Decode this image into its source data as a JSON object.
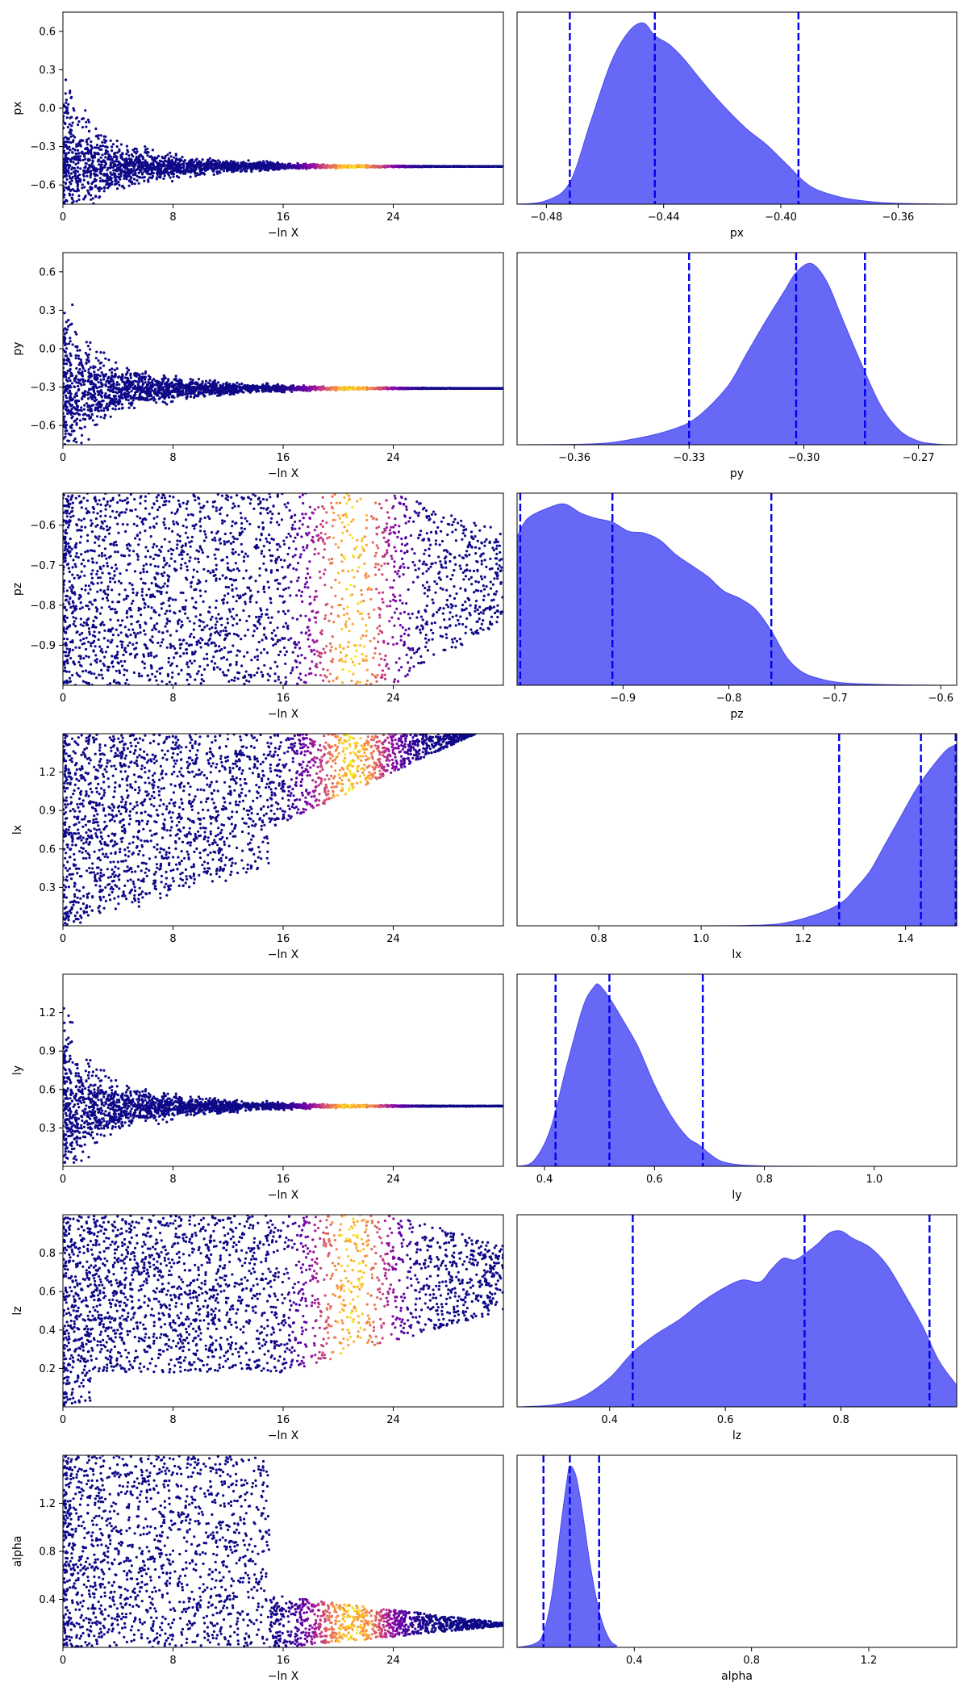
{
  "chart_data": [
    {
      "type": "scatter",
      "ylabel": "px",
      "xlabel": "−ln X",
      "xlim": [
        0,
        32
      ],
      "ylim": [
        -0.75,
        0.75
      ],
      "xticks": [
        0,
        8,
        16,
        24
      ],
      "yticks": [
        -0.6,
        -0.3,
        0.0,
        0.3,
        0.6
      ],
      "ytick_labels": [
        "−0.6",
        "−0.3",
        "0.0",
        "0.3",
        "0.6"
      ],
      "colormap": "plasma",
      "trace": {
        "converge": -0.455,
        "bulge_end": -0.18,
        "upper_start": 0.75,
        "lower_start": -0.75
      }
    },
    {
      "type": "area",
      "xlabel": "px",
      "xlim": [
        -0.49,
        -0.34
      ],
      "xticks": [
        -0.48,
        -0.44,
        -0.4,
        -0.36
      ],
      "xtick_labels": [
        "−0.48",
        "−0.44",
        "−0.40",
        "−0.36"
      ],
      "fill_color": "#5b5bf5",
      "quantile_color": "#0000ee",
      "quantiles": [
        -0.472,
        -0.443,
        -0.394
      ],
      "density": {
        "x": [
          -0.49,
          -0.48,
          -0.472,
          -0.465,
          -0.458,
          -0.452,
          -0.447,
          -0.443,
          -0.438,
          -0.433,
          -0.427,
          -0.42,
          -0.412,
          -0.405,
          -0.398,
          -0.39,
          -0.38,
          -0.37,
          -0.36,
          -0.34
        ],
        "y": [
          0.0,
          0.02,
          0.12,
          0.45,
          0.78,
          0.95,
          1.0,
          0.93,
          0.88,
          0.8,
          0.68,
          0.55,
          0.42,
          0.33,
          0.22,
          0.1,
          0.04,
          0.015,
          0.005,
          0.0
        ]
      }
    },
    {
      "type": "scatter",
      "ylabel": "py",
      "xlabel": "−ln X",
      "xlim": [
        0,
        32
      ],
      "ylim": [
        -0.75,
        0.75
      ],
      "xticks": [
        0,
        8,
        16,
        24
      ],
      "yticks": [
        -0.6,
        -0.3,
        0.0,
        0.3,
        0.6
      ],
      "ytick_labels": [
        "−0.6",
        "−0.3",
        "0.0",
        "0.3",
        "0.6"
      ],
      "colormap": "plasma",
      "trace": {
        "converge": -0.31,
        "bulge_end": -0.05,
        "upper_start": 0.75,
        "lower_start": -0.75
      }
    },
    {
      "type": "area",
      "xlabel": "py",
      "xlim": [
        -0.375,
        -0.26
      ],
      "xticks": [
        -0.36,
        -0.33,
        -0.3,
        -0.27
      ],
      "xtick_labels": [
        "−0.36",
        "−0.33",
        "−0.30",
        "−0.27"
      ],
      "fill_color": "#5b5bf5",
      "quantile_color": "#0000ee",
      "quantiles": [
        -0.33,
        -0.302,
        -0.284
      ],
      "density": {
        "x": [
          -0.375,
          -0.355,
          -0.345,
          -0.335,
          -0.328,
          -0.32,
          -0.315,
          -0.31,
          -0.305,
          -0.302,
          -0.298,
          -0.294,
          -0.29,
          -0.285,
          -0.28,
          -0.275,
          -0.27,
          -0.265,
          -0.26
        ],
        "y": [
          0.0,
          0.005,
          0.03,
          0.08,
          0.15,
          0.32,
          0.5,
          0.68,
          0.85,
          0.95,
          1.0,
          0.9,
          0.7,
          0.45,
          0.22,
          0.08,
          0.02,
          0.003,
          0.0
        ]
      }
    },
    {
      "type": "scatter",
      "ylabel": "pz",
      "xlabel": "−ln X",
      "xlim": [
        0,
        32
      ],
      "ylim": [
        -1.0,
        -0.52
      ],
      "xticks": [
        0,
        8,
        16,
        24
      ],
      "yticks": [
        -0.9,
        -0.8,
        -0.7,
        -0.6
      ],
      "ytick_labels": [
        "−0.9",
        "−0.8",
        "−0.7",
        "−0.6"
      ],
      "colormap": "plasma",
      "trace": {
        "fill_all": true,
        "right_start": 12,
        "right_end": 28
      }
    },
    {
      "type": "area",
      "xlabel": "pz",
      "xlim": [
        -1.0,
        -0.585
      ],
      "xticks": [
        -0.9,
        -0.8,
        -0.7,
        -0.6
      ],
      "xtick_labels": [
        "−0.9",
        "−0.8",
        "−0.7",
        "−0.6"
      ],
      "fill_color": "#5b5bf5",
      "quantile_color": "#0000ee",
      "quantiles": [
        -0.997,
        -0.91,
        -0.76
      ],
      "density": {
        "x": [
          -1.0,
          -0.99,
          -0.97,
          -0.955,
          -0.94,
          -0.925,
          -0.91,
          -0.895,
          -0.88,
          -0.865,
          -0.85,
          -0.835,
          -0.82,
          -0.805,
          -0.79,
          -0.775,
          -0.76,
          -0.745,
          -0.73,
          -0.71,
          -0.69,
          -0.66,
          -0.63,
          -0.6,
          -0.585
        ],
        "y": [
          0.82,
          0.92,
          0.98,
          1.0,
          0.95,
          0.92,
          0.9,
          0.85,
          0.84,
          0.8,
          0.72,
          0.66,
          0.6,
          0.52,
          0.48,
          0.42,
          0.3,
          0.15,
          0.07,
          0.03,
          0.012,
          0.005,
          0.002,
          0.0,
          0.0
        ]
      }
    },
    {
      "type": "scatter",
      "ylabel": "lx",
      "xlabel": "−ln X",
      "xlim": [
        0,
        32
      ],
      "ylim": [
        0.0,
        1.5
      ],
      "xticks": [
        0,
        8,
        16,
        24
      ],
      "yticks": [
        0.3,
        0.6,
        0.9,
        1.2
      ],
      "ytick_labels": [
        "0.3",
        "0.6",
        "0.9",
        "1.2"
      ],
      "colormap": "plasma",
      "trace": {
        "converge": 1.48,
        "bulge_end": 0.75,
        "upper_start": 1.5,
        "lower_start": 0.0,
        "upper_bound": 1.5
      }
    },
    {
      "type": "area",
      "xlabel": "lx",
      "xlim": [
        0.64,
        1.5
      ],
      "xticks": [
        0.8,
        1.0,
        1.2,
        1.4
      ],
      "xtick_labels": [
        "0.8",
        "1.0",
        "1.2",
        "1.4"
      ],
      "fill_color": "#5b5bf5",
      "quantile_color": "#0000ee",
      "quantiles": [
        1.27,
        1.43,
        1.498
      ],
      "density": {
        "x": [
          0.64,
          1.0,
          1.1,
          1.15,
          1.2,
          1.25,
          1.28,
          1.3,
          1.33,
          1.36,
          1.39,
          1.42,
          1.45,
          1.48,
          1.5
        ],
        "y": [
          0.0,
          0.0,
          0.003,
          0.01,
          0.04,
          0.09,
          0.14,
          0.2,
          0.3,
          0.45,
          0.6,
          0.75,
          0.87,
          0.97,
          1.0
        ]
      }
    },
    {
      "type": "scatter",
      "ylabel": "ly",
      "xlabel": "−ln X",
      "xlim": [
        0,
        32
      ],
      "ylim": [
        0.0,
        1.5
      ],
      "xticks": [
        0,
        8,
        16,
        24
      ],
      "yticks": [
        0.3,
        0.6,
        0.9,
        1.2
      ],
      "ytick_labels": [
        "0.3",
        "0.6",
        "0.9",
        "1.2"
      ],
      "colormap": "plasma",
      "trace": {
        "converge": 0.47,
        "bulge_end": 0.55,
        "upper_start": 1.5,
        "lower_start": 0.0
      }
    },
    {
      "type": "area",
      "xlabel": "ly",
      "xlim": [
        0.35,
        1.15
      ],
      "xticks": [
        0.4,
        0.6,
        0.8,
        1.0
      ],
      "xtick_labels": [
        "0.4",
        "0.6",
        "0.8",
        "1.0"
      ],
      "fill_color": "#5b5bf5",
      "quantile_color": "#0000ee",
      "quantiles": [
        0.42,
        0.518,
        0.688
      ],
      "density": {
        "x": [
          0.35,
          0.38,
          0.41,
          0.44,
          0.47,
          0.49,
          0.5,
          0.52,
          0.54,
          0.57,
          0.6,
          0.63,
          0.66,
          0.68,
          0.7,
          0.72,
          0.75,
          0.8,
          0.9,
          1.15
        ],
        "y": [
          0.0,
          0.03,
          0.2,
          0.55,
          0.88,
          0.99,
          1.0,
          0.92,
          0.82,
          0.66,
          0.45,
          0.28,
          0.16,
          0.12,
          0.07,
          0.03,
          0.01,
          0.002,
          0.0,
          0.0
        ]
      }
    },
    {
      "type": "scatter",
      "ylabel": "lz",
      "xlabel": "−ln X",
      "xlim": [
        0,
        32
      ],
      "ylim": [
        0.0,
        1.0
      ],
      "xticks": [
        0,
        8,
        16,
        24
      ],
      "yticks": [
        0.2,
        0.4,
        0.6,
        0.8
      ],
      "ytick_labels": [
        "0.2",
        "0.4",
        "0.6",
        "0.8"
      ],
      "colormap": "plasma",
      "trace": {
        "fill_all": true,
        "lower_bound_mode": "lz",
        "right_start": 14,
        "right_end": 32
      }
    },
    {
      "type": "area",
      "xlabel": "lz",
      "xlim": [
        0.24,
        1.0
      ],
      "xticks": [
        0.4,
        0.6,
        0.8
      ],
      "xtick_labels": [
        "0.4",
        "0.6",
        "0.8"
      ],
      "fill_color": "#5b5bf5",
      "quantile_color": "#0000ee",
      "quantiles": [
        0.44,
        0.737,
        0.953
      ],
      "density": {
        "x": [
          0.24,
          0.3,
          0.35,
          0.4,
          0.44,
          0.48,
          0.52,
          0.56,
          0.6,
          0.63,
          0.66,
          0.68,
          0.7,
          0.72,
          0.74,
          0.76,
          0.78,
          0.8,
          0.82,
          0.85,
          0.88,
          0.91,
          0.94,
          0.97,
          1.0
        ],
        "y": [
          0.0,
          0.01,
          0.05,
          0.16,
          0.3,
          0.4,
          0.48,
          0.58,
          0.66,
          0.7,
          0.69,
          0.76,
          0.82,
          0.81,
          0.85,
          0.9,
          0.96,
          0.97,
          0.93,
          0.88,
          0.78,
          0.62,
          0.45,
          0.25,
          0.12
        ]
      }
    },
    {
      "type": "scatter",
      "ylabel": "alpha",
      "xlabel": "−ln X",
      "xlim": [
        0,
        32
      ],
      "ylim": [
        0.0,
        1.6
      ],
      "xticks": [
        0,
        8,
        16,
        24
      ],
      "yticks": [
        0.4,
        0.8,
        1.2
      ],
      "ytick_labels": [
        "0.4",
        "0.8",
        "1.2"
      ],
      "colormap": "plasma",
      "trace": {
        "converge": 0.19,
        "bulge_end": 0.45,
        "upper_start": 1.6,
        "lower_start": 0.0,
        "lower_only_right": true
      }
    },
    {
      "type": "area",
      "xlabel": "alpha",
      "xlim": [
        0.0,
        1.5
      ],
      "xticks": [
        0.4,
        0.8,
        1.2
      ],
      "xtick_labels": [
        "0.4",
        "0.8",
        "1.2"
      ],
      "fill_color": "#5b5bf5",
      "quantile_color": "#0000ee",
      "quantiles": [
        0.09,
        0.18,
        0.28
      ],
      "density": {
        "x": [
          0.0,
          0.06,
          0.09,
          0.12,
          0.15,
          0.17,
          0.18,
          0.2,
          0.22,
          0.25,
          0.28,
          0.31,
          0.34,
          0.4,
          1.5
        ],
        "y": [
          0.0,
          0.02,
          0.08,
          0.3,
          0.68,
          0.92,
          1.0,
          0.95,
          0.78,
          0.45,
          0.2,
          0.06,
          0.01,
          0.0,
          0.0
        ]
      }
    }
  ]
}
